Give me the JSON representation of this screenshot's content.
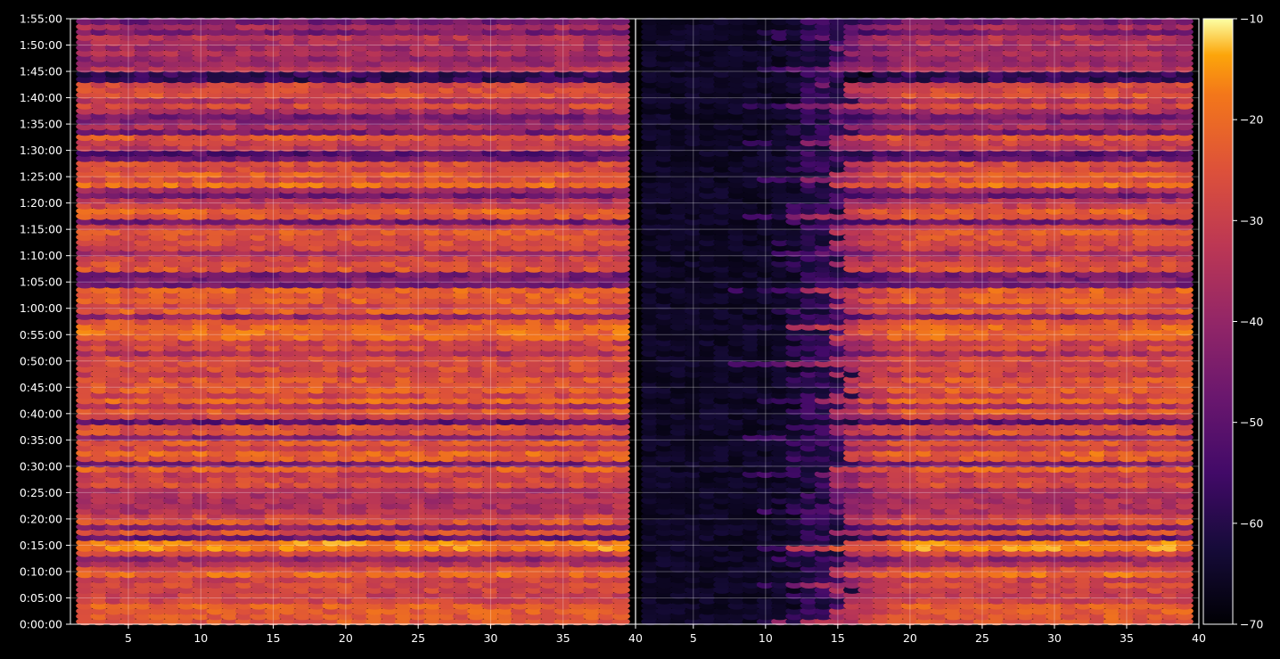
{
  "chart_data": {
    "type": "heatmap",
    "colormap": "inferno",
    "colors": {
      "background": "#000000",
      "axis": "#ffffff",
      "grid": "#ffffff"
    },
    "grid": true,
    "panels": [
      {
        "name": "",
        "x_ticks": [
          "5",
          "10",
          "15",
          "20",
          "25",
          "30",
          "35",
          "40"
        ],
        "x_tick_values": [
          5,
          10,
          15,
          20,
          25,
          30,
          35,
          40
        ],
        "xlim": [
          1,
          40
        ]
      },
      {
        "name": "",
        "x_ticks": [
          "5",
          "10",
          "15",
          "20",
          "25",
          "30",
          "35",
          "40"
        ],
        "x_tick_values": [
          5,
          10,
          15,
          20,
          25,
          30,
          35,
          40
        ],
        "xlim": [
          1,
          40
        ]
      }
    ],
    "x_values": [
      2,
      3,
      4,
      5,
      6,
      7,
      8,
      9,
      10,
      11,
      12,
      13,
      14,
      15,
      16,
      17,
      18,
      19,
      20,
      21,
      22,
      23,
      24,
      25,
      26,
      27,
      28,
      29,
      30,
      31,
      32,
      33,
      34,
      35,
      36,
      37,
      38,
      39
    ],
    "y_ticks": [
      "1:55:00",
      "1:50:00",
      "1:45:00",
      "1:40:00",
      "1:35:00",
      "1:30:00",
      "1:25:00",
      "1:20:00",
      "1:15:00",
      "1:10:00",
      "1:05:00",
      "1:00:00",
      "0:55:00",
      "0:50:00",
      "0:45:00",
      "0:40:00",
      "0:35:00",
      "0:30:00",
      "0:25:00",
      "0:20:00",
      "0:15:00",
      "0:10:00",
      "0:05:00",
      "0:00:00"
    ],
    "y_tick_seconds": [
      6900,
      6600,
      6300,
      6000,
      5700,
      5400,
      5100,
      4800,
      4500,
      4200,
      3900,
      3600,
      3300,
      3000,
      2700,
      2400,
      2100,
      1800,
      1500,
      1200,
      900,
      600,
      300,
      0
    ],
    "ylim_seconds": [
      0,
      6900
    ],
    "time_bin_seconds": 60,
    "colorbar": {
      "ticks": [
        "−10",
        "−20",
        "−30",
        "−40",
        "−50",
        "−60",
        "−70"
      ],
      "tick_values": [
        -10,
        -20,
        -30,
        -40,
        -50,
        -60,
        -70
      ],
      "range": [
        -70,
        -10
      ]
    }
  }
}
